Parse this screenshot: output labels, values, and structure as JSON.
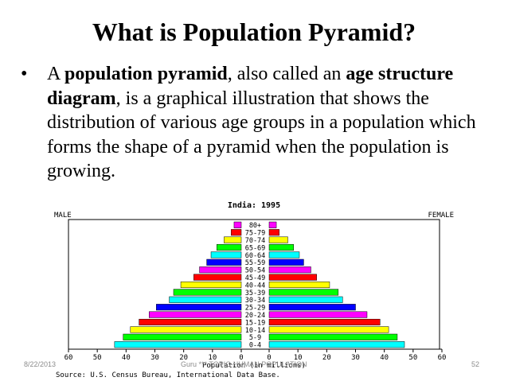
{
  "slide": {
    "title": "What is Population Pyramid?",
    "bullet": {
      "symbol": "•",
      "t1": "A ",
      "b1": "population pyramid",
      "t2": ", also called an ",
      "b2": "age structure diagram",
      "t3": ", is a graphical illustration that shows the distribution of various age groups in a population which forms the shape of a pyramid when the population is growing."
    },
    "footer": {
      "date": "8/22/2013",
      "center": "Guru  ***  TOPIC-HUMAN POPULATION",
      "page": "52"
    }
  },
  "chart_data": {
    "type": "bar",
    "title": "India: 1995",
    "left_label": "MALE",
    "right_label": "FEMALE",
    "xlabel": "Population (in millions)",
    "source": "Source: U.S. Census Bureau, International Data Base.",
    "xlim": [
      0,
      60
    ],
    "tick_labels": [
      "60",
      "50",
      "40",
      "30",
      "20",
      "10",
      "0",
      "0",
      "10",
      "20",
      "30",
      "40",
      "50",
      "60"
    ],
    "categories": [
      "80+",
      "75-79",
      "70-74",
      "65-69",
      "60-64",
      "55-59",
      "50-54",
      "45-49",
      "40-44",
      "35-39",
      "30-34",
      "25-29",
      "20-24",
      "15-19",
      "10-14",
      "5-9",
      "0-4"
    ],
    "bar_colors": [
      "#ff00ff",
      "#ff0000",
      "#ffff00",
      "#00ff00",
      "#00ffff",
      "#0000ff",
      "#ff00ff",
      "#ff0000",
      "#ffff00",
      "#00ff00",
      "#00ffff",
      "#0000ff",
      "#ff00ff",
      "#ff0000",
      "#ffff00",
      "#00ff00",
      "#00ffff"
    ],
    "series": [
      {
        "name": "MALE",
        "values": [
          2.5,
          3.5,
          6.0,
          8.5,
          10.5,
          12.0,
          14.5,
          16.5,
          21.0,
          23.5,
          25.0,
          29.5,
          32.0,
          35.5,
          38.5,
          41.0,
          44.0
        ]
      },
      {
        "name": "FEMALE",
        "values": [
          2.5,
          3.5,
          6.5,
          8.5,
          10.5,
          12.0,
          14.5,
          16.5,
          21.0,
          24.0,
          25.5,
          30.0,
          34.0,
          38.5,
          41.5,
          44.5,
          47.0
        ]
      }
    ]
  }
}
